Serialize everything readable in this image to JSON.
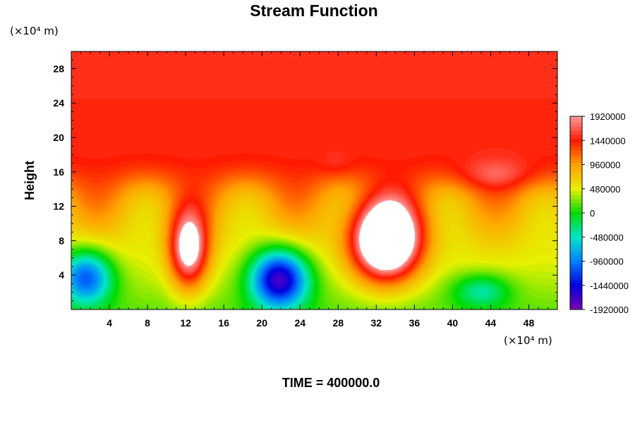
{
  "chart_data": {
    "type": "heatmap",
    "title": "Stream Function",
    "ylabel": "Height",
    "x_unit": "(×10⁴ m)",
    "y_unit": "(×10⁴ m)",
    "footer": "TIME = 400000.0",
    "xlim": [
      0,
      51
    ],
    "ylim": [
      0,
      30
    ],
    "x_ticks": [
      "4",
      "8",
      "12",
      "16",
      "20",
      "24",
      "28",
      "32",
      "36",
      "40",
      "44",
      "48"
    ],
    "y_ticks": [
      "4",
      "8",
      "12",
      "16",
      "20",
      "24",
      "28"
    ],
    "colorbar_ticks": [
      "1920000",
      "1440000",
      "960000",
      "480000",
      "0",
      "-480000",
      "-960000",
      "-1440000",
      "-1920000"
    ],
    "value_range": [
      -1920000,
      1920000
    ],
    "background_value": 1500000,
    "above_range_color": "#ffffff",
    "top_layer": {
      "from_height": 19,
      "value": 1500000
    },
    "colormap": [
      [
        -1920000,
        "#7a00b5"
      ],
      [
        -1440000,
        "#0000e0"
      ],
      [
        -960000,
        "#0080ff"
      ],
      [
        -480000,
        "#00e6c8"
      ],
      [
        0,
        "#00dc00"
      ],
      [
        480000,
        "#e6f000"
      ],
      [
        960000,
        "#ffa000"
      ],
      [
        1440000,
        "#ff1a00"
      ],
      [
        1920000,
        "#ff9a9a"
      ]
    ],
    "features": [
      {
        "x": 1.5,
        "y": 3.8,
        "sx": 2.8,
        "sy": 3.2,
        "amp": -1500000
      },
      {
        "x": 21.8,
        "y": 3.6,
        "sx": 3.0,
        "sy": 3.4,
        "amp": -2100000
      },
      {
        "x": 43.0,
        "y": 2.2,
        "sx": 3.0,
        "sy": 2.0,
        "amp": -700000
      },
      {
        "x": 12.3,
        "y": 7.0,
        "sx": 2.0,
        "sy": 4.5,
        "amp": 1700000
      },
      {
        "x": 33.0,
        "y": 8.0,
        "sx": 3.5,
        "sy": 4.5,
        "amp": 2600000
      },
      {
        "x": 44.5,
        "y": 16.5,
        "sx": 4.0,
        "sy": 2.0,
        "amp": 900000
      },
      {
        "x": 27.8,
        "y": 17.5,
        "sx": 1.8,
        "sy": 1.5,
        "amp": 600000
      }
    ]
  }
}
